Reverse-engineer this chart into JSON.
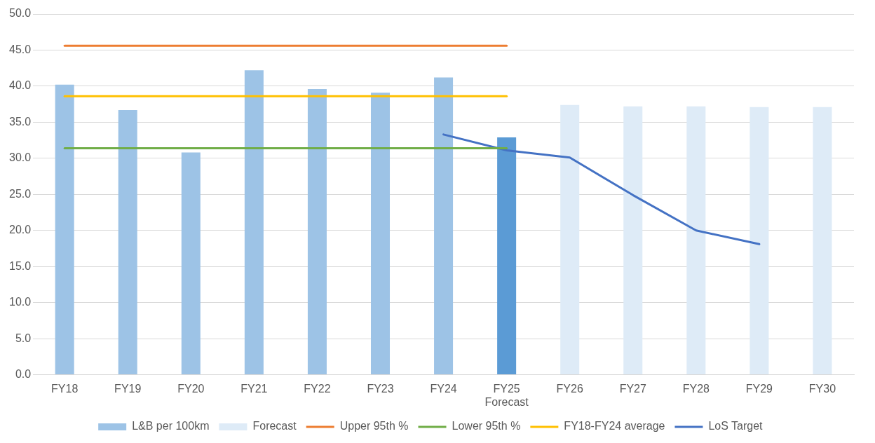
{
  "chart_data": {
    "type": "bar",
    "categories": [
      "FY18",
      "FY19",
      "FY20",
      "FY21",
      "FY22",
      "FY23",
      "FY24",
      "FY25\nForecast",
      "FY26",
      "FY27",
      "FY28",
      "FY29",
      "FY30"
    ],
    "series": [
      {
        "name": "L&B per 100km",
        "color": "#9dc3e6",
        "colors": [
          "#9dc3e6",
          "#9dc3e6",
          "#9dc3e6",
          "#9dc3e6",
          "#9dc3e6",
          "#9dc3e6",
          "#9dc3e6",
          "#5b9bd5",
          null,
          null,
          null,
          null,
          null
        ],
        "values": [
          40.2,
          36.7,
          30.8,
          42.2,
          39.6,
          39.1,
          41.2,
          32.9,
          null,
          null,
          null,
          null,
          null
        ]
      },
      {
        "name": "Forecast",
        "color": "#deebf7",
        "values": [
          null,
          null,
          null,
          null,
          null,
          null,
          null,
          null,
          37.4,
          37.2,
          37.2,
          37.1,
          37.1
        ]
      },
      {
        "name": "Upper 95th %",
        "type": "line",
        "color": "#ed7d31",
        "values": [
          45.6,
          45.6,
          45.6,
          45.6,
          45.6,
          45.6,
          45.6,
          45.6,
          null,
          null,
          null,
          null,
          null
        ]
      },
      {
        "name": "Lower 95th %",
        "type": "line",
        "color": "#70ad47",
        "values": [
          31.4,
          31.4,
          31.4,
          31.4,
          31.4,
          31.4,
          31.4,
          31.4,
          null,
          null,
          null,
          null,
          null
        ]
      },
      {
        "name": "FY18-FY24 average",
        "type": "line",
        "color": "#ffc000",
        "values": [
          38.6,
          38.6,
          38.6,
          38.6,
          38.6,
          38.6,
          38.6,
          38.6,
          null,
          null,
          null,
          null,
          null
        ]
      },
      {
        "name": "LoS Target",
        "type": "line",
        "color": "#4472c4",
        "values": [
          null,
          null,
          null,
          null,
          null,
          null,
          33.3,
          31.1,
          30.1,
          24.9,
          20.0,
          18.1,
          null
        ]
      }
    ],
    "ylim": [
      0,
      50
    ],
    "yticks": [
      {
        "value": 0,
        "label": "0.0"
      },
      {
        "value": 5,
        "label": "5.0"
      },
      {
        "value": 10,
        "label": "10.0"
      },
      {
        "value": 15,
        "label": "15.0"
      },
      {
        "value": 20,
        "label": "20.0"
      },
      {
        "value": 25,
        "label": "25.0"
      },
      {
        "value": 30,
        "label": "30.0"
      },
      {
        "value": 35,
        "label": "35.0"
      },
      {
        "value": 40,
        "label": "40.0"
      },
      {
        "value": 45,
        "label": "45.0"
      },
      {
        "value": 50,
        "label": "50.0"
      }
    ],
    "grid": "y",
    "legend": "bottom",
    "marker": "none",
    "line_style": "solid"
  }
}
